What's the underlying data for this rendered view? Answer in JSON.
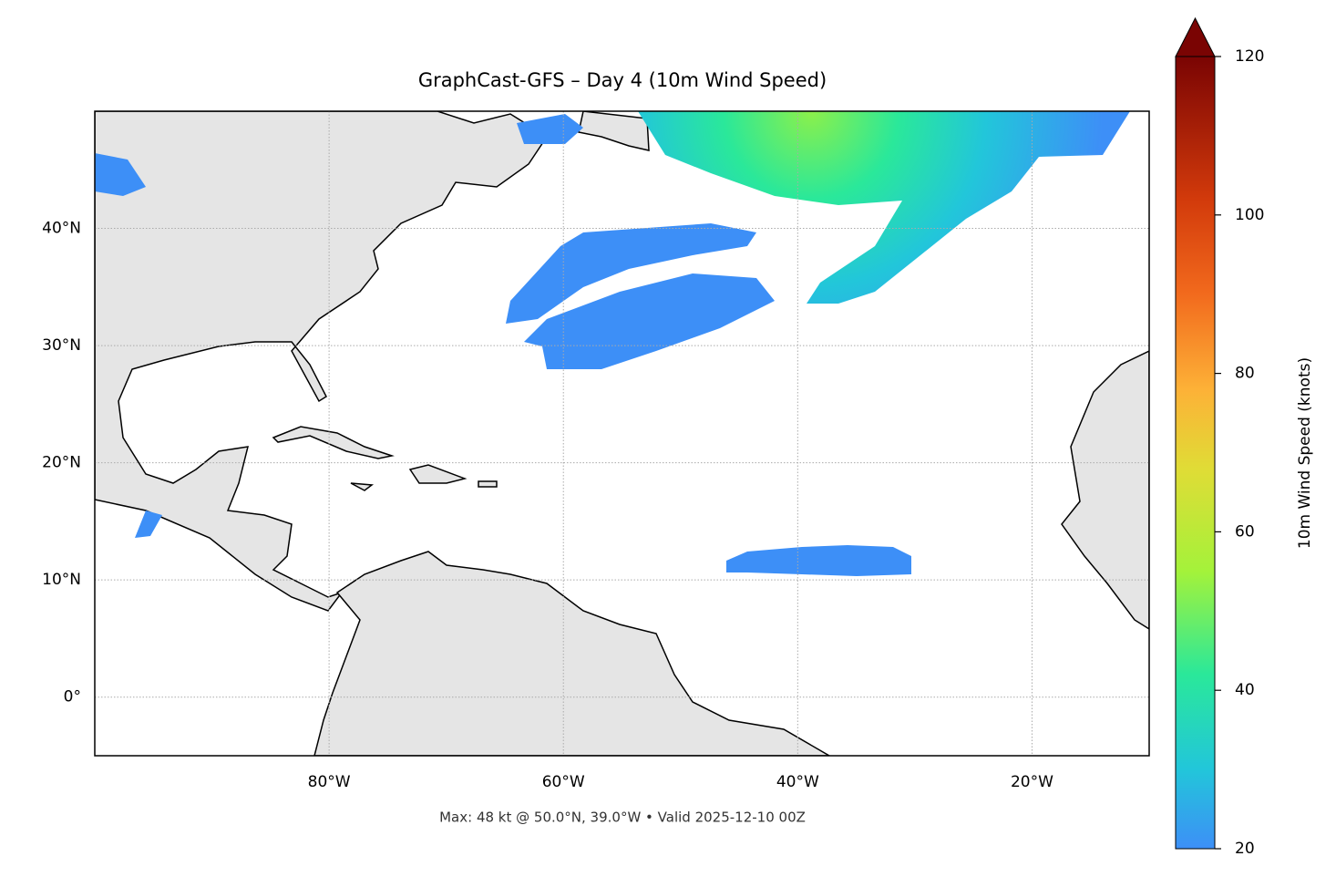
{
  "title": "GraphCast-GFS – Day 4 (10m Wind Speed)",
  "footer": "Max: 48 kt @ 50.0°N, 39.0°W • Valid 2025-12-10 00Z",
  "map": {
    "xlim": [
      -100,
      -10
    ],
    "ylim": [
      -5,
      50
    ],
    "xticks": [
      {
        "value": -80,
        "label": "80°W"
      },
      {
        "value": -60,
        "label": "60°W"
      },
      {
        "value": -40,
        "label": "40°W"
      },
      {
        "value": -20,
        "label": "20°W"
      }
    ],
    "yticks": [
      {
        "value": 0,
        "label": "0°"
      },
      {
        "value": 10,
        "label": "10°N"
      },
      {
        "value": 20,
        "label": "20°N"
      },
      {
        "value": 30,
        "label": "30°N"
      },
      {
        "value": 40,
        "label": "40°N"
      }
    ],
    "grid": true
  },
  "colorbar": {
    "label": "10m Wind Speed (knots)",
    "lim": [
      20,
      120
    ],
    "ticks": [
      20,
      40,
      60,
      80,
      100,
      120
    ]
  }
}
